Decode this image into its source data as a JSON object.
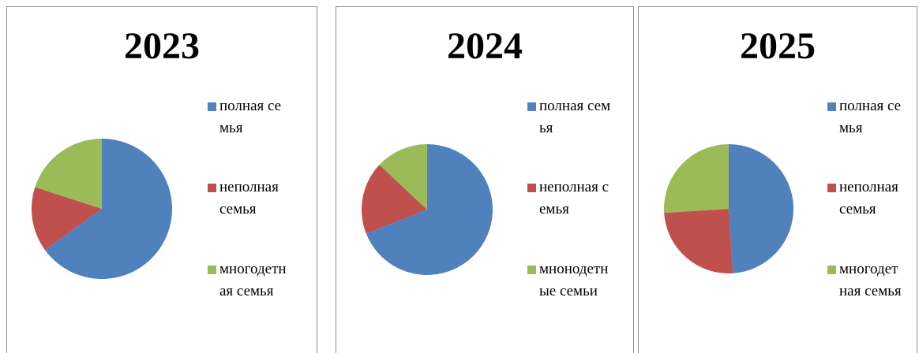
{
  "chart_data": [
    {
      "type": "pie",
      "title": "2023",
      "categories": [
        "полная семья",
        "неполная семья",
        "многодетная семья"
      ],
      "values": [
        65,
        15,
        20
      ],
      "colors": [
        "#4f81bd",
        "#c0504d",
        "#9bbb59"
      ]
    },
    {
      "type": "pie",
      "title": "2024",
      "categories": [
        "полная семья",
        "неполная семья",
        "мнонодетные семьи"
      ],
      "values": [
        69,
        18,
        13
      ],
      "colors": [
        "#4f81bd",
        "#c0504d",
        "#9bbb59"
      ]
    },
    {
      "type": "pie",
      "title": "2025",
      "categories": [
        "полная семья",
        "неполная семья",
        "многодетная семья"
      ],
      "values": [
        49,
        25,
        26
      ],
      "colors": [
        "#4f81bd",
        "#c0504d",
        "#9bbb59"
      ]
    }
  ]
}
